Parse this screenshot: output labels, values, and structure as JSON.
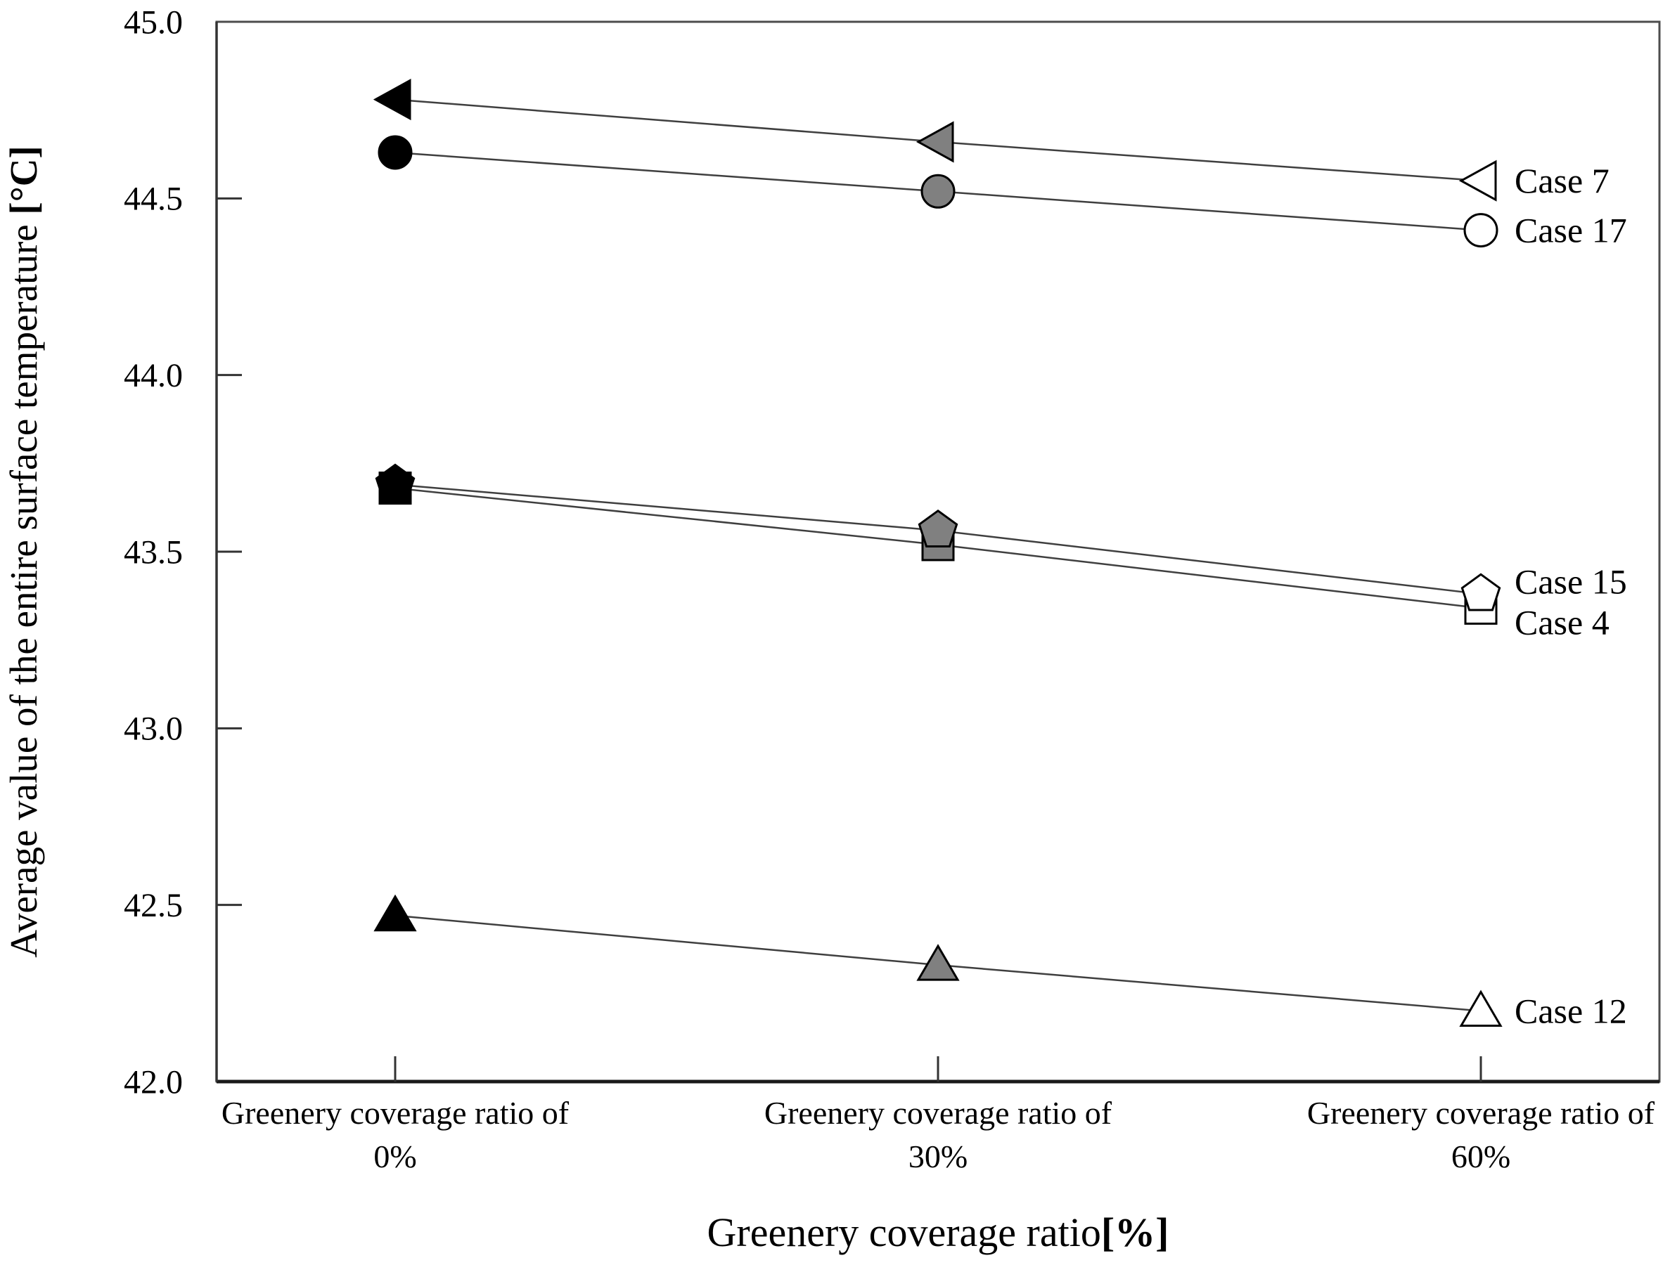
{
  "chart_data": {
    "type": "line",
    "title": "",
    "ylabel": {
      "text": "Average value of the entire surface temperature ",
      "unit": "[°C]"
    },
    "xlabel": {
      "text": "Greenery coverage ratio",
      "unit": "[%]"
    },
    "ylim": [
      42.0,
      45.0
    ],
    "ytick_step": 0.5,
    "yticks": [
      "45.0",
      "44.5",
      "44.0",
      "43.5",
      "43.0",
      "42.5",
      "42.0"
    ],
    "categories": [
      {
        "line1": "Greenery coverage ratio of",
        "line2": "0%"
      },
      {
        "line1": "Greenery coverage ratio of",
        "line2": "30%"
      },
      {
        "line1": "Greenery coverage ratio of",
        "line2": "60%"
      }
    ],
    "grid": false,
    "legend_position": "end-of-line-right",
    "point_fills_by_category": [
      "#000000",
      "#808080",
      "#ffffff"
    ],
    "line_color": "#3f3f3f",
    "axis_color": "#4d4d4d",
    "series": [
      {
        "name": "Case 7",
        "marker": "triangle-left",
        "values": [
          44.78,
          44.66,
          44.55
        ],
        "label_dy": 0
      },
      {
        "name": "Case 17",
        "marker": "circle",
        "values": [
          44.63,
          44.52,
          44.41
        ],
        "label_dy": 0
      },
      {
        "name": "Case 4",
        "marker": "square",
        "values": [
          43.68,
          43.52,
          43.34
        ],
        "label_dy": 20
      },
      {
        "name": "Case 15",
        "marker": "pentagon",
        "values": [
          43.69,
          43.56,
          43.38
        ],
        "label_dy": -18
      },
      {
        "name": "Case 12",
        "marker": "triangle-up",
        "values": [
          42.47,
          42.33,
          42.2
        ],
        "label_dy": 0
      }
    ]
  }
}
